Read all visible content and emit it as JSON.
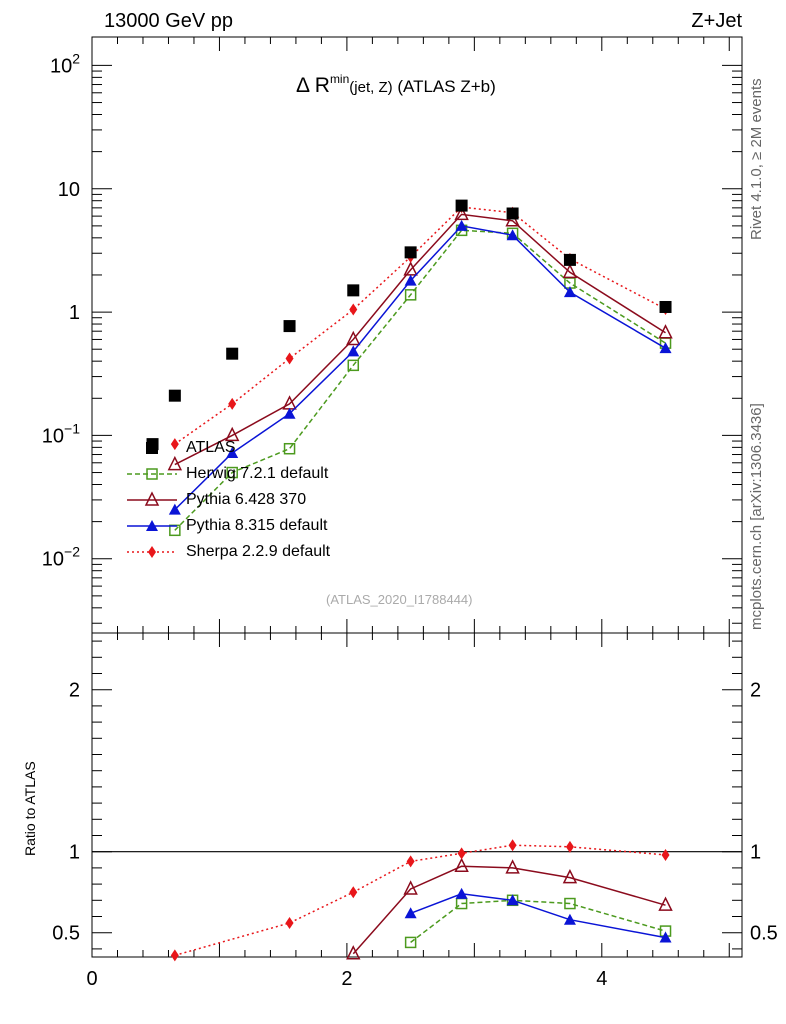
{
  "header": {
    "left": "13000 GeV pp",
    "right": "Z+Jet"
  },
  "side_labels": {
    "rivet": "Rivet 4.1.0, ≥ 2M events",
    "mcplots": "mcplots.cern.ch [arXiv:1306.3436]"
  },
  "title": {
    "delta": "Δ",
    "r": "R",
    "sup": "min",
    "args": "(jet, Z)",
    "rest": "(ATLAS Z+b)"
  },
  "analysis_tag": "(ATLAS_2020_I1788444)",
  "ratio_ylabel": "Ratio to ATLAS",
  "legend": [
    {
      "label": "ATLAS"
    },
    {
      "label": "Herwig 7.2.1 default"
    },
    {
      "label": "Pythia 6.428 370"
    },
    {
      "label": "Pythia 8.315 default"
    },
    {
      "label": "Sherpa 2.2.9 default"
    }
  ],
  "chart_data": {
    "type": "scatter",
    "title": "Δ R^min(jet, Z) (ATLAS Z+b)",
    "xlabel": "",
    "ylabel_main": "",
    "ylabel_ratio": "Ratio to ATLAS",
    "xlim": [
      0,
      5.1
    ],
    "ylim_main": [
      0.0025,
      170
    ],
    "ylim_ratio": [
      0.35,
      2.35
    ],
    "yscale_main": "log",
    "x_ticks": [
      "0",
      "2",
      "4"
    ],
    "y_ticks_main": [
      "10^-2",
      "10^-1",
      "1",
      "10",
      "10^2"
    ],
    "y_ticks_ratio": [
      "0.5",
      "1",
      "2"
    ],
    "x": [
      0.475,
      0.65,
      1.1,
      1.55,
      2.05,
      2.5,
      2.9,
      3.3,
      3.75,
      4.5
    ],
    "series": [
      {
        "name": "ATLAS",
        "color": "#000000",
        "marker": "filled-square",
        "line": "none",
        "values": [
          0.085,
          0.21,
          0.46,
          0.77,
          1.5,
          3.05,
          7.3,
          6.3,
          2.65,
          1.1
        ]
      },
      {
        "name": "Herwig 7.2.1 default",
        "color": "#4c9a1e",
        "marker": "open-square",
        "line": "dashed",
        "values": [
          null,
          0.017,
          0.05,
          0.078,
          0.37,
          1.38,
          4.6,
          4.35,
          1.72,
          0.56
        ],
        "ratio": [
          null,
          null,
          null,
          null,
          null,
          0.44,
          0.68,
          0.7,
          0.68,
          0.51
        ]
      },
      {
        "name": "Pythia 6.428 370",
        "color": "#8b0b1d",
        "marker": "open-triangle",
        "line": "solid",
        "values": [
          null,
          0.058,
          0.1,
          0.18,
          0.6,
          2.2,
          6.2,
          5.5,
          2.1,
          0.68
        ],
        "ratio": [
          null,
          null,
          null,
          null,
          0.37,
          0.77,
          0.91,
          0.9,
          0.84,
          0.67
        ]
      },
      {
        "name": "Pythia 8.315 default",
        "color": "#0a14d6",
        "marker": "filled-triangle",
        "line": "solid",
        "values": [
          null,
          0.025,
          0.072,
          0.15,
          0.48,
          1.8,
          5.0,
          4.2,
          1.45,
          0.51
        ],
        "ratio": [
          null,
          null,
          null,
          null,
          null,
          0.62,
          0.74,
          0.7,
          0.58,
          0.47
        ]
      },
      {
        "name": "Sherpa 2.2.9 default",
        "color": "#e8161a",
        "marker": "filled-diamond",
        "line": "dotted",
        "values": [
          null,
          0.085,
          0.18,
          0.42,
          1.05,
          2.8,
          7.1,
          6.4,
          2.7,
          1.06
        ],
        "ratio": [
          null,
          0.36,
          null,
          0.56,
          0.75,
          0.94,
          0.99,
          1.04,
          1.03,
          0.98
        ]
      }
    ]
  }
}
